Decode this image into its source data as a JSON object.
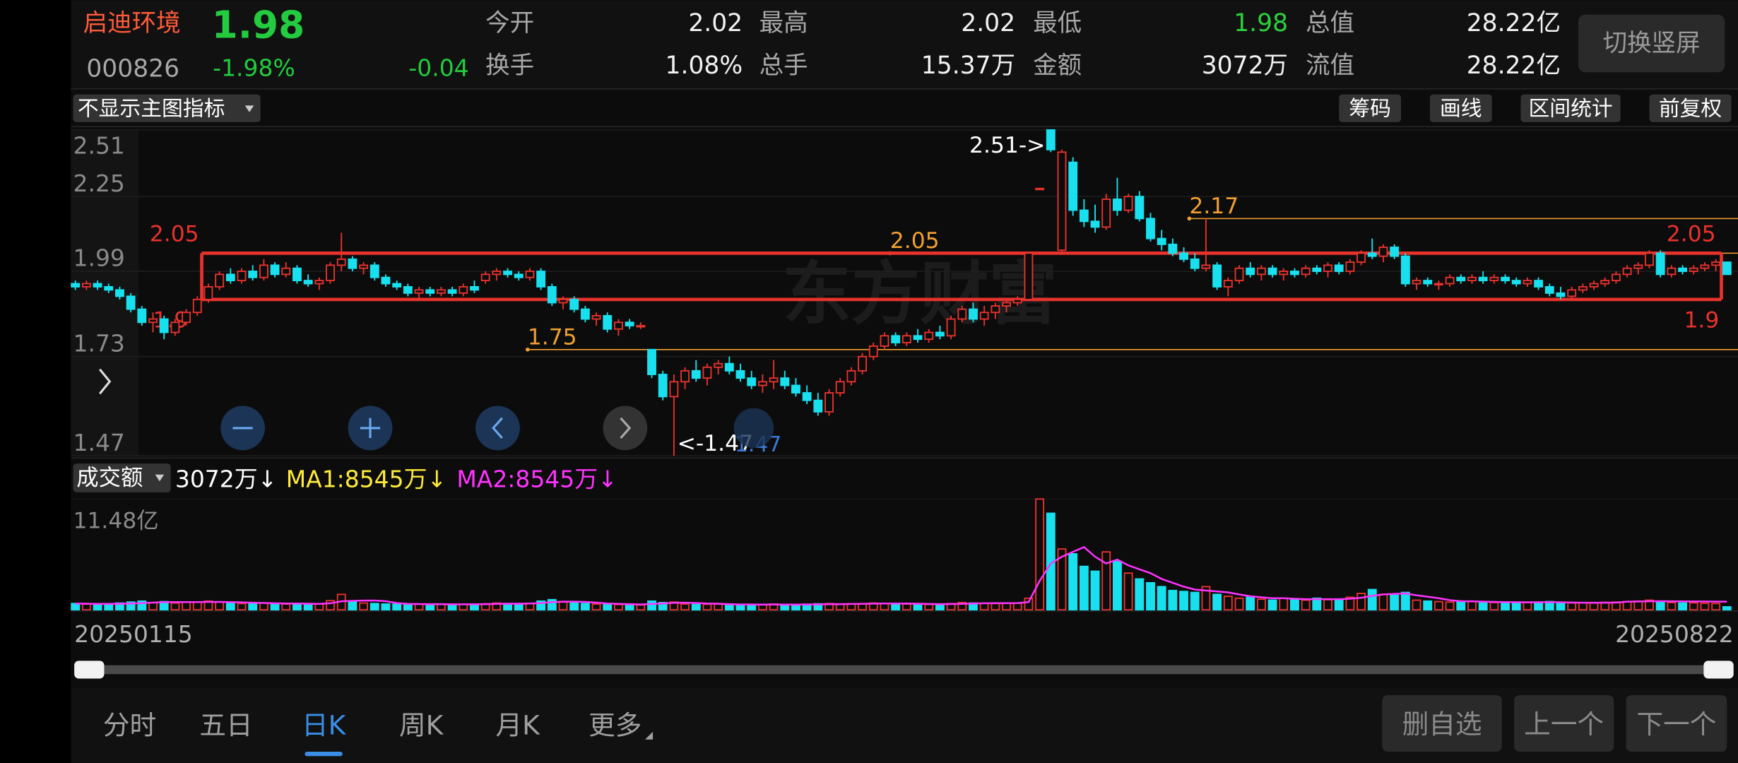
{
  "header": {
    "name": "启迪环境",
    "price": "1.98",
    "code": "000826",
    "change_pct": "-1.98%",
    "change": "-0.04",
    "stats": [
      {
        "label": "今开",
        "value": "2.02"
      },
      {
        "label": "最高",
        "value": "2.02"
      },
      {
        "label": "最低",
        "value": "1.98",
        "color": "#2bd13c"
      },
      {
        "label": "总值",
        "value": "28.22亿"
      },
      {
        "label": "换手",
        "value": "1.08%"
      },
      {
        "label": "总手",
        "value": "15.37万"
      },
      {
        "label": "金额",
        "value": "3072万"
      },
      {
        "label": "流值",
        "value": "28.22亿"
      }
    ],
    "switch_button": "切换竖屏"
  },
  "toolbar": {
    "indicator": "不显示主图指标",
    "buttons": [
      "筹码",
      "画线",
      "区间统计",
      "前复权"
    ]
  },
  "chart_data": [
    {
      "type": "candlestick",
      "log_scale": true,
      "ylim": [
        1.47,
        2.51
      ],
      "yticks": [
        1.47,
        1.73,
        1.99,
        2.25,
        2.51
      ],
      "grid": true,
      "up_color": "#e8322d",
      "down_color": "#18e0ee",
      "watermark": "东方财富",
      "candles": [
        [
          1.95,
          1.96,
          1.93,
          1.94
        ],
        [
          1.94,
          1.96,
          1.93,
          1.95
        ],
        [
          1.95,
          1.96,
          1.93,
          1.94
        ],
        [
          1.94,
          1.95,
          1.92,
          1.93
        ],
        [
          1.93,
          1.94,
          1.9,
          1.91
        ],
        [
          1.91,
          1.92,
          1.86,
          1.87
        ],
        [
          1.87,
          1.88,
          1.82,
          1.83
        ],
        [
          1.83,
          1.86,
          1.8,
          1.84
        ],
        [
          1.84,
          1.85,
          1.78,
          1.8
        ],
        [
          1.8,
          1.84,
          1.79,
          1.83
        ],
        [
          1.83,
          1.87,
          1.82,
          1.86
        ],
        [
          1.86,
          1.91,
          1.85,
          1.9
        ],
        [
          1.9,
          1.95,
          1.89,
          1.94
        ],
        [
          1.94,
          1.99,
          1.93,
          1.98
        ],
        [
          1.98,
          2.0,
          1.95,
          1.96
        ],
        [
          1.96,
          2.0,
          1.95,
          1.99
        ],
        [
          1.99,
          2.01,
          1.96,
          1.97
        ],
        [
          1.97,
          2.03,
          1.96,
          2.01
        ],
        [
          2.01,
          2.02,
          1.97,
          1.98
        ],
        [
          1.98,
          2.02,
          1.97,
          2.0
        ],
        [
          2.0,
          2.01,
          1.95,
          1.96
        ],
        [
          1.96,
          1.98,
          1.94,
          1.95
        ],
        [
          1.95,
          1.97,
          1.93,
          1.96
        ],
        [
          1.96,
          2.02,
          1.95,
          2.01
        ],
        [
          2.01,
          2.12,
          1.99,
          2.03
        ],
        [
          2.03,
          2.04,
          1.99,
          2.0
        ],
        [
          2.0,
          2.02,
          1.98,
          2.01
        ],
        [
          2.01,
          2.02,
          1.96,
          1.97
        ],
        [
          1.97,
          1.98,
          1.94,
          1.95
        ],
        [
          1.95,
          1.96,
          1.93,
          1.94
        ],
        [
          1.94,
          1.95,
          1.91,
          1.92
        ],
        [
          1.92,
          1.94,
          1.9,
          1.93
        ],
        [
          1.93,
          1.94,
          1.91,
          1.92
        ],
        [
          1.92,
          1.94,
          1.91,
          1.93
        ],
        [
          1.93,
          1.94,
          1.91,
          1.92
        ],
        [
          1.92,
          1.95,
          1.91,
          1.94
        ],
        [
          1.94,
          1.96,
          1.92,
          1.93
        ],
        [
          1.96,
          1.99,
          1.95,
          1.98
        ],
        [
          1.98,
          2.0,
          1.96,
          1.99
        ],
        [
          1.99,
          2.0,
          1.97,
          1.98
        ],
        [
          1.98,
          1.99,
          1.96,
          1.97
        ],
        [
          1.97,
          2.0,
          1.96,
          1.99
        ],
        [
          1.99,
          2.0,
          1.93,
          1.94
        ],
        [
          1.94,
          1.95,
          1.88,
          1.89
        ],
        [
          1.89,
          1.91,
          1.87,
          1.9
        ],
        [
          1.9,
          1.91,
          1.86,
          1.87
        ],
        [
          1.87,
          1.88,
          1.83,
          1.84
        ],
        [
          1.84,
          1.86,
          1.82,
          1.85
        ],
        [
          1.85,
          1.86,
          1.8,
          1.81
        ],
        [
          1.81,
          1.84,
          1.79,
          1.83
        ],
        [
          1.83,
          1.84,
          1.81,
          1.82
        ],
        [
          1.82,
          1.83,
          1.81,
          1.82
        ],
        [
          1.75,
          1.75,
          1.67,
          1.68
        ],
        [
          1.68,
          1.69,
          1.61,
          1.62
        ],
        [
          1.62,
          1.68,
          1.47,
          1.66
        ],
        [
          1.66,
          1.7,
          1.64,
          1.69
        ],
        [
          1.69,
          1.72,
          1.66,
          1.67
        ],
        [
          1.67,
          1.71,
          1.65,
          1.7
        ],
        [
          1.7,
          1.72,
          1.68,
          1.71
        ],
        [
          1.71,
          1.73,
          1.68,
          1.69
        ],
        [
          1.69,
          1.71,
          1.66,
          1.67
        ],
        [
          1.67,
          1.69,
          1.64,
          1.65
        ],
        [
          1.65,
          1.68,
          1.63,
          1.66
        ],
        [
          1.66,
          1.72,
          1.64,
          1.67
        ],
        [
          1.67,
          1.69,
          1.64,
          1.65
        ],
        [
          1.65,
          1.67,
          1.62,
          1.63
        ],
        [
          1.63,
          1.65,
          1.6,
          1.61
        ],
        [
          1.61,
          1.63,
          1.57,
          1.58
        ],
        [
          1.58,
          1.64,
          1.57,
          1.63
        ],
        [
          1.63,
          1.67,
          1.62,
          1.66
        ],
        [
          1.66,
          1.7,
          1.65,
          1.69
        ],
        [
          1.69,
          1.74,
          1.68,
          1.73
        ],
        [
          1.73,
          1.77,
          1.72,
          1.76
        ],
        [
          1.76,
          1.8,
          1.75,
          1.79
        ],
        [
          1.79,
          1.8,
          1.76,
          1.77
        ],
        [
          1.77,
          1.8,
          1.76,
          1.79
        ],
        [
          1.79,
          1.81,
          1.77,
          1.78
        ],
        [
          1.78,
          1.81,
          1.77,
          1.8
        ],
        [
          1.8,
          1.82,
          1.78,
          1.79
        ],
        [
          1.79,
          1.85,
          1.78,
          1.84
        ],
        [
          1.84,
          1.88,
          1.83,
          1.87
        ],
        [
          1.87,
          1.89,
          1.83,
          1.84
        ],
        [
          1.84,
          1.88,
          1.82,
          1.86
        ],
        [
          1.86,
          1.89,
          1.84,
          1.88
        ],
        [
          1.88,
          1.9,
          1.86,
          1.89
        ],
        [
          1.89,
          1.91,
          1.88,
          1.9
        ],
        [
          1.9,
          2.05,
          1.9,
          2.05
        ],
        [
          2.28,
          2.28,
          2.28,
          2.28
        ],
        [
          2.51,
          2.51,
          2.42,
          2.43
        ],
        [
          2.06,
          2.43,
          2.05,
          2.42
        ],
        [
          2.38,
          2.4,
          2.18,
          2.2
        ],
        [
          2.2,
          2.24,
          2.14,
          2.16
        ],
        [
          2.16,
          2.22,
          2.12,
          2.14
        ],
        [
          2.14,
          2.26,
          2.13,
          2.24
        ],
        [
          2.24,
          2.32,
          2.18,
          2.2
        ],
        [
          2.2,
          2.26,
          2.19,
          2.25
        ],
        [
          2.25,
          2.27,
          2.16,
          2.17
        ],
        [
          2.17,
          2.19,
          2.09,
          2.1
        ],
        [
          2.1,
          2.13,
          2.06,
          2.08
        ],
        [
          2.08,
          2.1,
          2.04,
          2.05
        ],
        [
          2.05,
          2.07,
          2.02,
          2.03
        ],
        [
          2.03,
          2.05,
          1.99,
          2.0
        ],
        [
          2.0,
          2.17,
          1.99,
          2.01
        ],
        [
          2.01,
          2.02,
          1.93,
          1.94
        ],
        [
          1.94,
          1.97,
          1.91,
          1.96
        ],
        [
          1.96,
          2.01,
          1.95,
          2.0
        ],
        [
          2.0,
          2.02,
          1.97,
          1.98
        ],
        [
          1.98,
          2.01,
          1.96,
          2.0
        ],
        [
          2.0,
          2.01,
          1.97,
          1.98
        ],
        [
          1.98,
          2.0,
          1.96,
          1.99
        ],
        [
          1.99,
          2.0,
          1.97,
          1.98
        ],
        [
          1.98,
          2.01,
          1.97,
          2.0
        ],
        [
          2.0,
          2.01,
          1.98,
          1.99
        ],
        [
          1.99,
          2.02,
          1.97,
          2.01
        ],
        [
          2.01,
          2.02,
          1.98,
          1.99
        ],
        [
          1.99,
          2.03,
          1.98,
          2.02
        ],
        [
          2.02,
          2.06,
          2.01,
          2.05
        ],
        [
          2.05,
          2.1,
          2.03,
          2.04
        ],
        [
          2.04,
          2.08,
          2.02,
          2.07
        ],
        [
          2.07,
          2.08,
          2.03,
          2.04
        ],
        [
          2.04,
          2.05,
          1.94,
          1.95
        ],
        [
          1.95,
          1.97,
          1.93,
          1.96
        ],
        [
          1.96,
          1.97,
          1.94,
          1.95
        ],
        [
          1.95,
          1.96,
          1.93,
          1.95
        ],
        [
          1.95,
          1.98,
          1.94,
          1.97
        ],
        [
          1.97,
          1.98,
          1.95,
          1.96
        ],
        [
          1.96,
          1.98,
          1.95,
          1.97
        ],
        [
          1.97,
          1.99,
          1.95,
          1.96
        ],
        [
          1.96,
          1.98,
          1.95,
          1.97
        ],
        [
          1.97,
          1.98,
          1.95,
          1.96
        ],
        [
          1.96,
          1.97,
          1.94,
          1.95
        ],
        [
          1.95,
          1.97,
          1.94,
          1.96
        ],
        [
          1.96,
          1.97,
          1.93,
          1.94
        ],
        [
          1.94,
          1.95,
          1.91,
          1.92
        ],
        [
          1.92,
          1.94,
          1.9,
          1.91
        ],
        [
          1.91,
          1.94,
          1.9,
          1.93
        ],
        [
          1.93,
          1.95,
          1.92,
          1.94
        ],
        [
          1.94,
          1.96,
          1.93,
          1.95
        ],
        [
          1.95,
          1.97,
          1.94,
          1.96
        ],
        [
          1.96,
          1.99,
          1.95,
          1.98
        ],
        [
          1.98,
          2.01,
          1.97,
          2.0
        ],
        [
          2.0,
          2.02,
          1.98,
          2.01
        ],
        [
          2.01,
          2.06,
          2.0,
          2.05
        ],
        [
          2.05,
          2.06,
          1.97,
          1.98
        ],
        [
          1.98,
          2.01,
          1.97,
          2.0
        ],
        [
          2.0,
          2.01,
          1.98,
          1.99
        ],
        [
          1.99,
          2.01,
          1.98,
          2.0
        ],
        [
          2.0,
          2.02,
          1.99,
          2.01
        ],
        [
          2.01,
          2.03,
          1.99,
          2.02
        ],
        [
          2.02,
          2.02,
          1.98,
          1.98
        ]
      ],
      "annotations": {
        "high_label": "2.51->",
        "low_label": "<-1.47",
        "overlay_label": "1.47",
        "box": {
          "top": 2.05,
          "bottom": 1.9,
          "color": "#e8322d"
        },
        "levels": [
          {
            "value": 1.75,
            "color": "#f0a030"
          },
          {
            "value": 2.05,
            "color": "#f0a030"
          },
          {
            "value": 2.17,
            "color": "#f0a030"
          }
        ]
      }
    },
    {
      "type": "bar",
      "ylim": [
        0,
        114800
      ],
      "yticks": [
        {
          "value": 114800,
          "label": "11.48亿"
        }
      ],
      "legend_title": "成交额",
      "legend": [
        {
          "text": "3072万↓",
          "color": "#ffffff"
        },
        {
          "text": "MA1:8545万↓",
          "color": "#ffeb3b"
        },
        {
          "text": "MA2:8545万↓",
          "color": "#ff33ff"
        }
      ],
      "start_date": "20250115",
      "end_date": "20250822",
      "values": [
        6500,
        6000,
        5800,
        6200,
        7000,
        8000,
        9000,
        7500,
        8500,
        7000,
        7800,
        8200,
        9000,
        8000,
        7000,
        6500,
        6800,
        7000,
        6200,
        6000,
        6500,
        5800,
        6000,
        9500,
        16000,
        9000,
        7000,
        6500,
        6000,
        5800,
        5500,
        5800,
        5600,
        6000,
        5400,
        5600,
        6000,
        6200,
        7000,
        6500,
        6000,
        6800,
        9000,
        10500,
        8000,
        7000,
        6500,
        6000,
        5800,
        5500,
        5200,
        5000,
        9000,
        7500,
        8000,
        6000,
        5500,
        5800,
        6000,
        5200,
        5000,
        5200,
        5600,
        6000,
        5400,
        5000,
        5800,
        6200,
        6500,
        6000,
        6200,
        6500,
        7000,
        6800,
        6500,
        6000,
        5800,
        5600,
        5800,
        6500,
        7500,
        7000,
        6800,
        6500,
        7000,
        6800,
        12000,
        114800,
        100000,
        63000,
        58000,
        45000,
        40000,
        60000,
        50000,
        38000,
        32000,
        28000,
        24000,
        20000,
        19000,
        18000,
        24000,
        16000,
        14000,
        12000,
        13000,
        11000,
        10000,
        12000,
        11000,
        10000,
        12000,
        10500,
        11000,
        13000,
        17000,
        21000,
        16000,
        15000,
        18000,
        10000,
        9000,
        8500,
        8000,
        9000,
        8500,
        8000,
        7500,
        8000,
        7800,
        7500,
        8000,
        8500,
        7000,
        7200,
        7500,
        7000,
        7800,
        8000,
        8500,
        9000,
        10000,
        8000,
        7500,
        7000,
        7200,
        6800,
        6500,
        3072
      ],
      "ma": {
        "color": "#ff33ff",
        "values": [
          6500,
          6300,
          6200,
          6200,
          6300,
          6600,
          7000,
          7500,
          8000,
          8000,
          8000,
          8000,
          8100,
          8100,
          8000,
          7700,
          7400,
          7100,
          6800,
          6600,
          6500,
          6300,
          6200,
          6800,
          8800,
          9300,
          9500,
          9600,
          9000,
          7000,
          6200,
          6000,
          5800,
          5800,
          5700,
          5700,
          5700,
          5900,
          6200,
          6300,
          6300,
          6500,
          7000,
          8000,
          8500,
          8500,
          8200,
          7500,
          6600,
          6200,
          5800,
          5500,
          6200,
          6600,
          7200,
          7300,
          7100,
          6600,
          6300,
          5800,
          5500,
          5500,
          5400,
          5500,
          5400,
          5400,
          5500,
          5600,
          5800,
          5900,
          6100,
          6200,
          6400,
          6600,
          6600,
          6500,
          6300,
          6100,
          5900,
          6000,
          6200,
          6500,
          6800,
          6900,
          6900,
          7000,
          8000,
          30000,
          48000,
          55000,
          60000,
          65000,
          55000,
          48000,
          52000,
          46000,
          42000,
          38000,
          32000,
          28000,
          24000,
          21000,
          20000,
          19000,
          18000,
          16000,
          14000,
          13000,
          12000,
          12000,
          11500,
          11000,
          11000,
          11000,
          11000,
          11500,
          12500,
          14500,
          16000,
          16500,
          17000,
          15000,
          13500,
          12000,
          10000,
          9000,
          8800,
          8500,
          8200,
          8000,
          7900,
          7800,
          7800,
          7900,
          7800,
          7600,
          7400,
          7300,
          7400,
          7500,
          8500,
          8600,
          8800,
          8900,
          8800,
          8700,
          8600,
          8600,
          8550,
          8545
        ]
      }
    }
  ],
  "tabs": {
    "items": [
      "分时",
      "五日",
      "日K",
      "周K",
      "月K",
      "更多"
    ],
    "selected": 2
  },
  "actions": [
    "删自选",
    "上一个",
    "下一个"
  ]
}
